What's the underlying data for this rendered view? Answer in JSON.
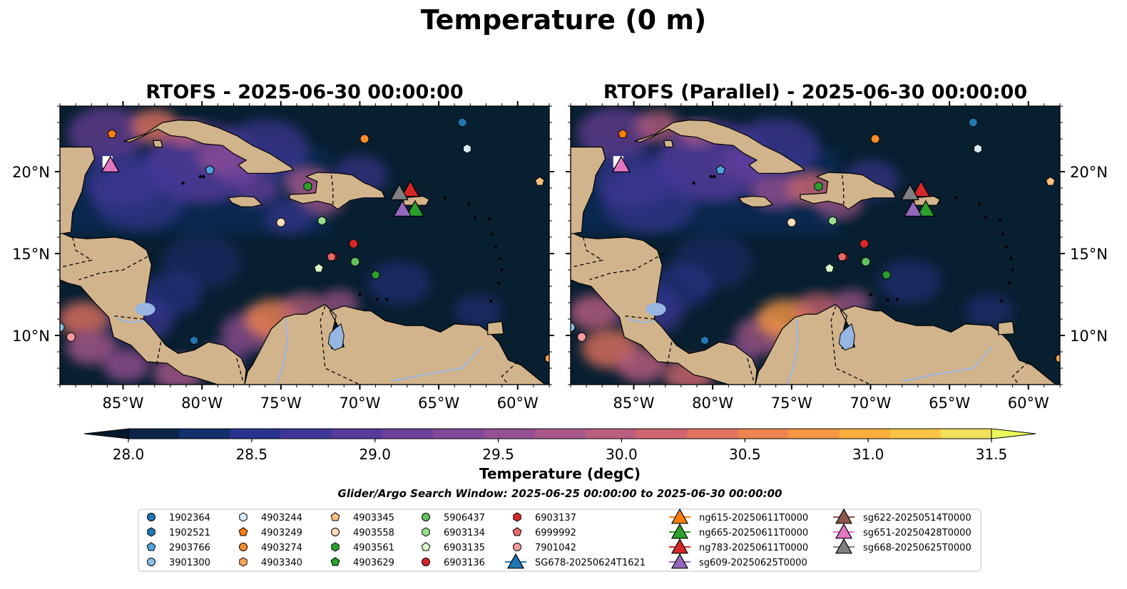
{
  "suptitle": "Temperature (0 m)",
  "panels": [
    {
      "title": "RTOFS - 2025-06-30 00:00:00"
    },
    {
      "title": "RTOFS (Parallel) - 2025-06-30 00:00:00"
    }
  ],
  "map": {
    "lon_range": [
      -89,
      -58
    ],
    "lat_range": [
      7,
      24
    ],
    "x_ticks": [
      {
        "lon": -85,
        "label": "85°W"
      },
      {
        "lon": -80,
        "label": "80°W"
      },
      {
        "lon": -75,
        "label": "75°W"
      },
      {
        "lon": -70,
        "label": "70°W"
      },
      {
        "lon": -65,
        "label": "65°W"
      },
      {
        "lon": -60,
        "label": "60°W"
      }
    ],
    "y_ticks": [
      {
        "lat": 20,
        "label": "20°N"
      },
      {
        "lat": 15,
        "label": "15°N"
      },
      {
        "lat": 10,
        "label": "10°N"
      }
    ],
    "ocean_color": "#081f30",
    "land_color": "#d2b48c",
    "lake_color": "#97b6e1",
    "border_style": "dashed",
    "grid": false
  },
  "colorbar": {
    "label": "Temperature (degC)",
    "min": 28.0,
    "max": 31.5,
    "ticks": [
      "28.0",
      "28.5",
      "29.0",
      "29.5",
      "30.0",
      "30.5",
      "31.0",
      "31.5"
    ],
    "extend": "both",
    "colors": [
      "#05192b",
      "#0b2447",
      "#11306c",
      "#2a348f",
      "#3f3798",
      "#573a9c",
      "#6d419c",
      "#81489a",
      "#955093",
      "#a8598a",
      "#bb5e80",
      "#d06670",
      "#e1725f",
      "#ef8350",
      "#f79743",
      "#faae3c",
      "#f8c644",
      "#f1e15b",
      "#e8fa5b"
    ]
  },
  "search_window": "Glider/Argo Search Window: 2025-06-25 00:00:00 to 2025-06-30 00:00:00",
  "argo_floats": [
    {
      "id": "1902364",
      "marker": "circle",
      "color": "#1f77b4",
      "lon": -63.5,
      "lat": 23.0
    },
    {
      "id": "1902521",
      "marker": "hexagon",
      "color": "#1f77b4",
      "lon": -80.5,
      "lat": 9.7
    },
    {
      "id": "2903766",
      "marker": "pentagon",
      "color": "#4fa3e0",
      "lon": -79.5,
      "lat": 20.1
    },
    {
      "id": "3901300",
      "marker": "circle",
      "color": "#89c1ea",
      "lon": -89.0,
      "lat": 10.5
    },
    {
      "id": "4903244",
      "marker": "hexagon",
      "color": "#d4ebfb",
      "lon": -63.2,
      "lat": 21.4
    },
    {
      "id": "4903249",
      "marker": "pentagon",
      "color": "#ff7f0e",
      "lon": -85.7,
      "lat": 22.3
    },
    {
      "id": "4903274",
      "marker": "circle",
      "color": "#ff8c2a",
      "lon": -69.7,
      "lat": 22.0
    },
    {
      "id": "4903340",
      "marker": "hexagon",
      "color": "#ffa552",
      "lon": -58.0,
      "lat": 8.6
    },
    {
      "id": "4903345",
      "marker": "pentagon",
      "color": "#ffc280",
      "lon": -58.6,
      "lat": 19.4
    },
    {
      "id": "4903558",
      "marker": "circle",
      "color": "#ffdcb6",
      "lon": -75.0,
      "lat": 16.9
    },
    {
      "id": "4903561",
      "marker": "hexagon",
      "color": "#2ca02c",
      "lon": -73.3,
      "lat": 19.1
    },
    {
      "id": "4903629",
      "marker": "pentagon",
      "color": "#2ca02c",
      "lon": -69.0,
      "lat": 13.7
    },
    {
      "id": "5906437",
      "marker": "circle",
      "color": "#5fc25f",
      "lon": -70.3,
      "lat": 14.5
    },
    {
      "id": "6903134",
      "marker": "hexagon",
      "color": "#98e08f",
      "lon": -72.4,
      "lat": 17.0
    },
    {
      "id": "6903135",
      "marker": "pentagon",
      "color": "#d8f8c8",
      "lon": -72.6,
      "lat": 14.1
    },
    {
      "id": "6903136",
      "marker": "circle",
      "color": "#d62728",
      "lon": -70.4,
      "lat": 15.6
    },
    {
      "id": "6903137",
      "marker": "hexagon",
      "color": "#d62728",
      "lon": -71.7,
      "lat": 14.8
    },
    {
      "id": "6999992",
      "marker": "pentagon",
      "color": "#e56a6a",
      "lon": -71.8,
      "lat": 14.8
    },
    {
      "id": "7901042",
      "marker": "circle",
      "color": "#f59b9b",
      "lon": -88.3,
      "lat": 9.9
    }
  ],
  "gliders": [
    {
      "id": "SG678-20250624T1621",
      "color": "#1f77b4",
      "lon": null,
      "lat": null
    },
    {
      "id": "ng615-20250611T0000",
      "color": "#ff7f0e",
      "lon": null,
      "lat": null
    },
    {
      "id": "ng665-20250611T0000",
      "color": "#2ca02c",
      "lon": -66.5,
      "lat": 17.7
    },
    {
      "id": "ng783-20250611T0000",
      "color": "#d62728",
      "lon": -66.8,
      "lat": 18.9
    },
    {
      "id": "sg609-20250625T0000",
      "color": "#9467bd",
      "lon": -67.3,
      "lat": 17.7
    },
    {
      "id": "sg622-20250514T0000",
      "color": "#8c564b",
      "lon": null,
      "lat": null
    },
    {
      "id": "sg651-20250428T0000",
      "color": "#e377c2",
      "lon": -85.8,
      "lat": 20.4
    },
    {
      "id": "sg668-20250625T0000",
      "color": "#7f7f7f",
      "lon": -67.5,
      "lat": 18.7
    }
  ]
}
